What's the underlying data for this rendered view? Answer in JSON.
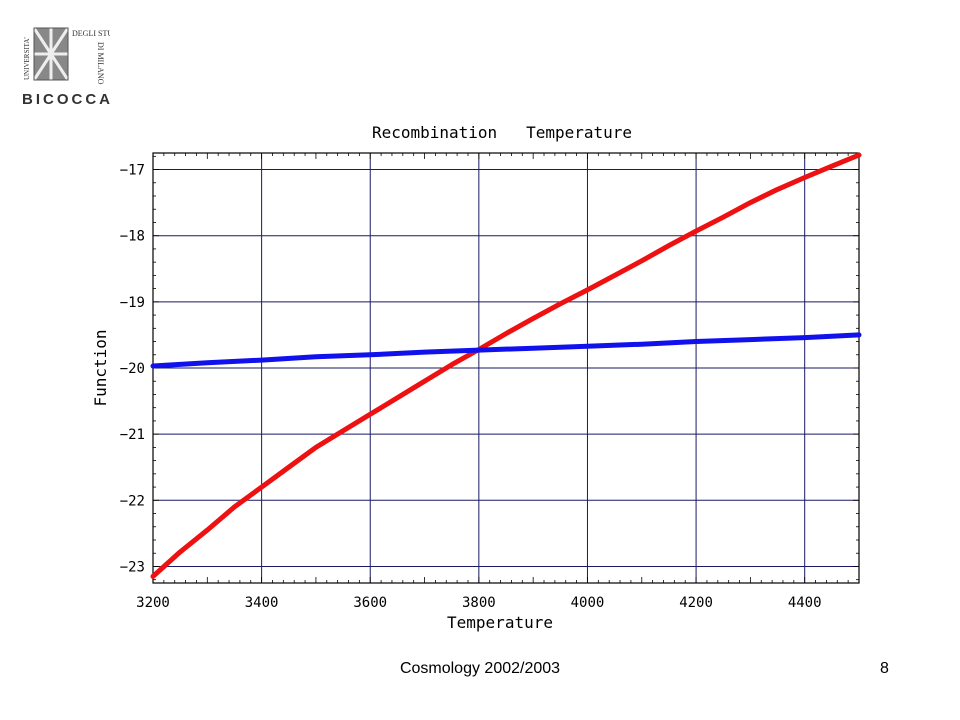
{
  "logo": {
    "line1": "UNIVERSITA'",
    "line2": "DEGLI STUDI",
    "line3": "DI MILANO",
    "line4": "BICOCCA"
  },
  "footer": {
    "text": "Cosmology 2002/2003",
    "page": "8"
  },
  "colors": {
    "series1": "#ee1111",
    "series2": "#1111ee",
    "grid": "#1a1a66"
  },
  "chart_data": {
    "type": "line",
    "title": "Recombination   Temperature",
    "xlabel": "Temperature",
    "ylabel": "Function",
    "xlim": [
      3200,
      4500
    ],
    "ylim": [
      -23.25,
      -16.75
    ],
    "xticks": [
      3200,
      3400,
      3600,
      3800,
      4000,
      4200,
      4400
    ],
    "yticks": [
      -17,
      -18,
      -19,
      -20,
      -21,
      -22,
      -23
    ],
    "xtick_labels": [
      "3200",
      "3400",
      "3600",
      "3800",
      "4000",
      "4200",
      "4400"
    ],
    "ytick_labels": [
      "−17",
      "−18",
      "−19",
      "−20",
      "−21",
      "−22",
      "−23"
    ],
    "grid": true,
    "series": [
      {
        "color": "#ee1111",
        "x": [
          3200,
          3250,
          3300,
          3350,
          3400,
          3450,
          3500,
          3550,
          3600,
          3650,
          3700,
          3750,
          3800,
          3850,
          3900,
          3950,
          4000,
          4050,
          4100,
          4150,
          4200,
          4250,
          4300,
          4350,
          4400,
          4450,
          4500
        ],
        "y": [
          -23.15,
          -22.78,
          -22.45,
          -22.1,
          -21.8,
          -21.5,
          -21.2,
          -20.95,
          -20.7,
          -20.45,
          -20.2,
          -19.95,
          -19.72,
          -19.48,
          -19.25,
          -19.03,
          -18.82,
          -18.6,
          -18.38,
          -18.15,
          -17.93,
          -17.72,
          -17.5,
          -17.3,
          -17.12,
          -16.95,
          -16.78
        ]
      },
      {
        "color": "#1111ee",
        "x": [
          3200,
          3300,
          3400,
          3500,
          3600,
          3700,
          3800,
          3900,
          4000,
          4100,
          4200,
          4300,
          4400,
          4500
        ],
        "y": [
          -19.97,
          -19.92,
          -19.88,
          -19.83,
          -19.8,
          -19.76,
          -19.73,
          -19.7,
          -19.67,
          -19.64,
          -19.6,
          -19.57,
          -19.54,
          -19.5
        ]
      }
    ]
  }
}
